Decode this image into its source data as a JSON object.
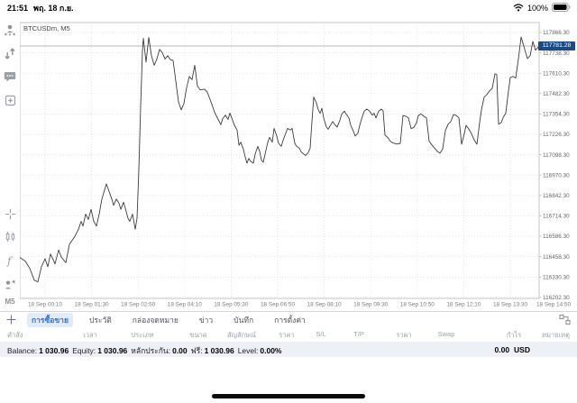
{
  "status_bar": {
    "time": "21:51",
    "date": "พฤ. 18 ก.ย.",
    "battery": "100%"
  },
  "sidebar": {
    "top_icons": [
      "account-icon",
      "trade-arrows-icon",
      "chat-icon",
      "new-order-icon"
    ],
    "bottom_icons": [
      "crosshair-icon",
      "chart-type-icon",
      "indicators-icon",
      "objects-icon"
    ],
    "timeframe": "M5"
  },
  "chart": {
    "symbol": "BTCUSDm, M5",
    "current_price": "117781.28",
    "accent_tag_color": "#1b4b87",
    "line_color": "#3c3c3c",
    "grid_color": "#dcdcdc",
    "frame_color": "#c5c5c5",
    "bid_line_color": "#b3b7bd"
  },
  "chart_data": {
    "type": "line",
    "title": "BTCUSDm, M5",
    "xlabel": "",
    "ylabel": "",
    "legend": [],
    "grid": "dotted",
    "x_labels": [
      "18 Sep 00:10",
      "18 Sep 01:30",
      "18 Sep 02:50",
      "18 Sep 04:10",
      "18 Sep 05:30",
      "18 Sep 06:50",
      "18 Sep 08:10",
      "18 Sep 09:30",
      "18 Sep 10:50",
      "18 Sep 12:10",
      "18 Sep 13:30",
      "18 Sep 14:50"
    ],
    "y_ticks": [
      117866.3,
      117738.3,
      117610.3,
      117482.3,
      117354.3,
      117226.3,
      117098.3,
      116970.3,
      116842.3,
      116714.3,
      116586.3,
      116458.3,
      116330.3,
      116202.3
    ],
    "ylim": [
      116195.7,
      117928.6
    ],
    "current_price": 117781.28,
    "series_name": "BTCUSDm close (M5)",
    "points": [
      [
        22,
        116453
      ],
      [
        28,
        116430
      ],
      [
        33,
        116385
      ],
      [
        38,
        116310
      ],
      [
        42,
        116300
      ],
      [
        46,
        116395
      ],
      [
        50,
        116445
      ],
      [
        53,
        116395
      ],
      [
        56,
        116475
      ],
      [
        59,
        116440
      ],
      [
        61,
        116412
      ],
      [
        65,
        116500
      ],
      [
        68,
        116455
      ],
      [
        73,
        116420
      ],
      [
        77,
        116535
      ],
      [
        83,
        116585
      ],
      [
        87,
        116630
      ],
      [
        90,
        116680
      ],
      [
        92,
        116650
      ],
      [
        95,
        116725
      ],
      [
        98,
        116692
      ],
      [
        101,
        116755
      ],
      [
        104,
        116680
      ],
      [
        107,
        116650
      ],
      [
        110,
        116725
      ],
      [
        113,
        116820
      ],
      [
        118,
        116915
      ],
      [
        121,
        116868
      ],
      [
        124,
        116820
      ],
      [
        126,
        116780
      ],
      [
        129,
        116820
      ],
      [
        132,
        116793
      ],
      [
        134,
        116755
      ],
      [
        137,
        116800
      ],
      [
        139,
        116762
      ],
      [
        142,
        116698
      ],
      [
        144,
        116680
      ],
      [
        147,
        116725
      ],
      [
        150,
        116630
      ],
      [
        152,
        116700
      ],
      [
        154,
        117000
      ],
      [
        156,
        117400
      ],
      [
        158,
        117750
      ],
      [
        159,
        117830
      ],
      [
        162,
        117680
      ],
      [
        165,
        117835
      ],
      [
        168,
        117720
      ],
      [
        171,
        117660
      ],
      [
        174,
        117700
      ],
      [
        177,
        117760
      ],
      [
        180,
        117740
      ],
      [
        183,
        117700
      ],
      [
        186,
        117720
      ],
      [
        189,
        117695
      ],
      [
        192,
        117690
      ],
      [
        195,
        117560
      ],
      [
        198,
        117430
      ],
      [
        201,
        117380
      ],
      [
        204,
        117420
      ],
      [
        207,
        117520
      ],
      [
        210,
        117590
      ],
      [
        213,
        117570
      ],
      [
        216,
        117660
      ],
      [
        219,
        117530
      ],
      [
        222,
        117505
      ],
      [
        227,
        117510
      ],
      [
        230,
        117490
      ],
      [
        235,
        117415
      ],
      [
        238,
        117365
      ],
      [
        242,
        117320
      ],
      [
        245,
        117287
      ],
      [
        247,
        117325
      ],
      [
        250,
        117347
      ],
      [
        253,
        117320
      ],
      [
        255,
        117360
      ],
      [
        257,
        117330
      ],
      [
        260,
        117283
      ],
      [
        263,
        117253
      ],
      [
        265,
        117158
      ],
      [
        267,
        117177
      ],
      [
        270,
        117132
      ],
      [
        272,
        117083
      ],
      [
        274,
        117045
      ],
      [
        276,
        117075
      ],
      [
        278,
        117057
      ],
      [
        281,
        117045
      ],
      [
        283,
        117102
      ],
      [
        286,
        117151
      ],
      [
        288,
        117120
      ],
      [
        290,
        117064
      ],
      [
        292,
        117051
      ],
      [
        295,
        117126
      ],
      [
        297,
        117177
      ],
      [
        299,
        117207
      ],
      [
        302,
        117177
      ],
      [
        304,
        117264
      ],
      [
        307,
        117215
      ],
      [
        309,
        117170
      ],
      [
        312,
        117151
      ],
      [
        314,
        117189
      ],
      [
        317,
        117234
      ],
      [
        319,
        117264
      ],
      [
        322,
        117253
      ],
      [
        324,
        117264
      ],
      [
        327,
        117170
      ],
      [
        329,
        117151
      ],
      [
        332,
        117140
      ],
      [
        334,
        117117
      ],
      [
        337,
        117102
      ],
      [
        339,
        117094
      ],
      [
        342,
        117113
      ],
      [
        344,
        117140
      ],
      [
        346,
        117306
      ],
      [
        348,
        117460
      ],
      [
        351,
        117423
      ],
      [
        353,
        117381
      ],
      [
        355,
        117359
      ],
      [
        357,
        117390
      ],
      [
        359,
        117329
      ],
      [
        362,
        117272
      ],
      [
        364,
        117258
      ],
      [
        367,
        117287
      ],
      [
        369,
        117306
      ],
      [
        372,
        117283
      ],
      [
        374,
        117272
      ],
      [
        377,
        117315
      ],
      [
        379,
        117353
      ],
      [
        382,
        117372
      ],
      [
        384,
        117353
      ],
      [
        387,
        117329
      ],
      [
        389,
        117283
      ],
      [
        392,
        117245
      ],
      [
        394,
        117215
      ],
      [
        397,
        117234
      ],
      [
        399,
        117283
      ],
      [
        402,
        117340
      ],
      [
        404,
        117372
      ],
      [
        407,
        117385
      ],
      [
        410,
        117372
      ],
      [
        413,
        117347
      ],
      [
        415,
        117359
      ],
      [
        417,
        117329
      ],
      [
        420,
        117372
      ],
      [
        423,
        117385
      ],
      [
        425,
        117372
      ],
      [
        427,
        117221
      ],
      [
        430,
        117207
      ],
      [
        433,
        117183
      ],
      [
        436,
        117172
      ],
      [
        440,
        117165
      ],
      [
        444,
        117170
      ],
      [
        447,
        117345
      ],
      [
        450,
        117340
      ],
      [
        453,
        117330
      ],
      [
        456,
        117262
      ],
      [
        459,
        117270
      ],
      [
        462,
        117300
      ],
      [
        464,
        117345
      ],
      [
        467,
        117355
      ],
      [
        470,
        117340
      ],
      [
        473,
        117330
      ],
      [
        476,
        117183
      ],
      [
        479,
        117160
      ],
      [
        482,
        117140
      ],
      [
        485,
        117120
      ],
      [
        488,
        117108
      ],
      [
        491,
        117134
      ],
      [
        494,
        117250
      ],
      [
        497,
        117290
      ],
      [
        500,
        117306
      ],
      [
        503,
        117351
      ],
      [
        506,
        117345
      ],
      [
        509,
        117330
      ],
      [
        512,
        117164
      ],
      [
        515,
        117230
      ],
      [
        517,
        117283
      ],
      [
        520,
        117260
      ],
      [
        523,
        117230
      ],
      [
        526,
        117190
      ],
      [
        529,
        117164
      ],
      [
        532,
        117300
      ],
      [
        534,
        117380
      ],
      [
        537,
        117460
      ],
      [
        540,
        117476
      ],
      [
        543,
        117500
      ],
      [
        546,
        117515
      ],
      [
        549,
        117607
      ],
      [
        551,
        117600
      ],
      [
        553,
        117290
      ],
      [
        556,
        117300
      ],
      [
        558,
        117330
      ],
      [
        561,
        117360
      ],
      [
        564,
        117500
      ],
      [
        566,
        117583
      ],
      [
        569,
        117590
      ],
      [
        572,
        117580
      ],
      [
        575,
        117700
      ],
      [
        578,
        117838
      ],
      [
        581,
        117780
      ],
      [
        583,
        117740
      ],
      [
        585,
        117702
      ],
      [
        588,
        117720
      ],
      [
        591,
        117810
      ],
      [
        594,
        117755
      ],
      [
        598,
        117781.28
      ]
    ]
  },
  "panel": {
    "tabs": [
      "การซื้อขาย",
      "ประวัติ",
      "กล่องจดหมาย",
      "ข่าว",
      "บันทึก",
      "การตั้งค่า"
    ],
    "active_tab_index": 0,
    "active_tab_color": "#2e6fd2",
    "columns": [
      "คำสั่ง",
      "เวลา",
      "ประเภท",
      "ขนาด",
      "สัญลักษณ์",
      "ราคา",
      "S/L",
      "T/P",
      "ราคา",
      "Swap",
      "กำไร",
      "หมายเหตุ"
    ],
    "balance_items": [
      {
        "label": "Balance:",
        "value": "1 030.96"
      },
      {
        "label": "Equity:",
        "value": "1 030.96"
      },
      {
        "label": "หลักประกัน:",
        "value": "0.00"
      },
      {
        "label": "ฟรี:",
        "value": "1 030.96"
      },
      {
        "label": "Level:",
        "value": "0.00%"
      }
    ],
    "profit": {
      "value": "0.00",
      "currency": "USD"
    }
  }
}
